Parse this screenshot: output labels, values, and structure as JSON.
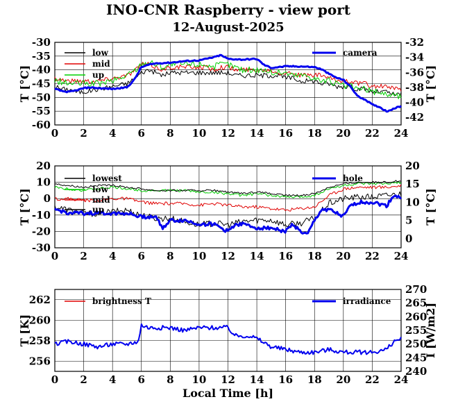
{
  "title": "INO-CNR Raspberry - view port",
  "subtitle": "12-August-2025",
  "chart_data": [
    {
      "type": "line",
      "x_ticks": [
        "0",
        "2",
        "4",
        "6",
        "8",
        "10",
        "12",
        "14",
        "16",
        "18",
        "20",
        "22",
        "24"
      ],
      "xlim": [
        0,
        24
      ],
      "ylabel": "T [°C]",
      "ylim": [
        -60,
        -30
      ],
      "y_ticks": [
        "-30",
        "-35",
        "-40",
        "-45",
        "-50",
        "-55",
        "-60"
      ],
      "y2label": "T [°C]",
      "y2lim": [
        -43,
        -32
      ],
      "y2_ticks": [
        "-32",
        "-34",
        "-36",
        "-38",
        "-40",
        "-42"
      ],
      "grid": true,
      "series": [
        {
          "name": "low",
          "color": "#000000",
          "axis": "left",
          "width": 1,
          "noise": 0.9,
          "x": [
            0,
            0.5,
            1,
            1.5,
            2,
            3,
            4,
            5,
            5.6,
            6,
            6.5,
            7,
            7.5,
            8,
            8.5,
            9,
            9.5,
            10,
            10.5,
            11,
            11.5,
            12,
            12.5,
            13,
            13.5,
            14,
            14.5,
            15,
            15.5,
            16,
            16.5,
            17,
            17.5,
            18,
            18.5,
            19,
            19.5,
            20,
            20.5,
            21,
            21.5,
            22,
            22.5,
            23,
            23.5,
            24
          ],
          "y": [
            -46,
            -47,
            -47,
            -48,
            -48,
            -47,
            -46,
            -45,
            -43,
            -41,
            -40,
            -41,
            -42,
            -41,
            -41,
            -41,
            -41,
            -41,
            -41,
            -41,
            -41,
            -41,
            -42,
            -42,
            -42,
            -42,
            -42,
            -42,
            -42,
            -43,
            -43,
            -44,
            -44,
            -44,
            -45,
            -45,
            -46,
            -46,
            -46,
            -47,
            -47,
            -48,
            -48,
            -48,
            -49,
            -49
          ]
        },
        {
          "name": "mid",
          "color": "#e00000",
          "axis": "left",
          "width": 1,
          "noise": 0.9,
          "x": [
            0,
            1,
            2,
            3,
            4,
            5,
            5.6,
            6,
            6.5,
            7,
            7.5,
            8,
            8.5,
            9,
            9.5,
            10,
            10.5,
            11,
            11.5,
            12,
            12.5,
            13,
            13.5,
            14,
            14.5,
            15,
            15.5,
            16,
            16.5,
            17,
            17.5,
            18,
            18.5,
            19,
            19.5,
            20,
            20.5,
            21,
            21.5,
            22,
            22.5,
            23,
            23.5,
            24
          ],
          "y": [
            -43,
            -44,
            -44,
            -44,
            -43,
            -42,
            -40,
            -38,
            -38,
            -39,
            -40,
            -39,
            -39,
            -39,
            -39,
            -39,
            -39,
            -40,
            -39,
            -39,
            -40,
            -40,
            -40,
            -40,
            -40,
            -40,
            -41,
            -41,
            -41,
            -42,
            -42,
            -42,
            -42,
            -43,
            -44,
            -44,
            -44,
            -45,
            -45,
            -46,
            -46,
            -46,
            -47,
            -47
          ]
        },
        {
          "name": "up",
          "color": "#00d000",
          "axis": "left",
          "width": 1,
          "noise": 1.2,
          "x": [
            0,
            1,
            2,
            3,
            4,
            5,
            5.6,
            6,
            6.5,
            7,
            7.5,
            8,
            8.5,
            9,
            9.5,
            10,
            10.5,
            11,
            11.5,
            12,
            12.5,
            13,
            13.5,
            14,
            14.5,
            15,
            15.5,
            16,
            16.5,
            17,
            17.5,
            18,
            18.5,
            19,
            19.5,
            20,
            20.5,
            21,
            21.5,
            22,
            22.5,
            23,
            23.5,
            24
          ],
          "y": [
            -44,
            -45,
            -45,
            -45,
            -44,
            -42,
            -40,
            -38,
            -37,
            -38,
            -39,
            -38,
            -38,
            -38,
            -38,
            -38,
            -38,
            -39,
            -38,
            -38,
            -39,
            -40,
            -40,
            -40,
            -40,
            -41,
            -41,
            -41,
            -42,
            -42,
            -42,
            -43,
            -44,
            -44,
            -45,
            -46,
            -46,
            -47,
            -47,
            -48,
            -48,
            -49,
            -49,
            -50
          ]
        },
        {
          "name": "camera",
          "color": "#0000ee",
          "axis": "right",
          "width": 3,
          "noise": 0.08,
          "x": [
            0,
            0.5,
            1,
            1.5,
            2,
            2.5,
            3,
            4,
            5,
            5.5,
            6,
            6.5,
            7,
            8,
            9,
            10,
            11,
            11.5,
            12,
            13,
            14,
            14.5,
            15,
            16,
            17,
            18,
            18.5,
            19,
            19.5,
            20,
            20.5,
            21,
            21.5,
            22,
            22.5,
            23,
            23.5,
            24
          ],
          "y": [
            -38.2,
            -38.5,
            -38.6,
            -38.4,
            -38.1,
            -38.0,
            -38.1,
            -38.2,
            -38.0,
            -37.0,
            -35.3,
            -35.0,
            -34.8,
            -34.7,
            -34.5,
            -34.4,
            -34.0,
            -33.7,
            -34.2,
            -34.3,
            -34.2,
            -35.0,
            -35.4,
            -35.2,
            -35.2,
            -35.3,
            -35.6,
            -36.2,
            -36.7,
            -37.0,
            -37.9,
            -39.2,
            -39.6,
            -40.3,
            -40.6,
            -41.2,
            -40.8,
            -40.5
          ]
        }
      ]
    },
    {
      "type": "line",
      "x_ticks": [
        "0",
        "2",
        "4",
        "6",
        "8",
        "10",
        "12",
        "14",
        "16",
        "18",
        "20",
        "22",
        "24"
      ],
      "xlim": [
        0,
        24
      ],
      "ylabel": "T [°C]",
      "ylim": [
        -30,
        20
      ],
      "y_ticks": [
        "20",
        "10",
        "0",
        "-10",
        "-20",
        "-30"
      ],
      "y2label": "T [°C]",
      "y2lim": [
        -2.5,
        20
      ],
      "y2_ticks": [
        "20",
        "15",
        "10",
        "5",
        "0"
      ],
      "grid": true,
      "series": [
        {
          "name": "lowest",
          "color": "#000000",
          "axis": "left",
          "width": 1,
          "noise": 2.0,
          "x": [
            0,
            1,
            2,
            3,
            4,
            5,
            6,
            7,
            8,
            9,
            10,
            11,
            12,
            13,
            14,
            15,
            16,
            17,
            18,
            19,
            20,
            21,
            22,
            23,
            24
          ],
          "y": [
            -5,
            -7,
            -9,
            -9,
            -8,
            -7,
            -10,
            -12,
            -12,
            -14,
            -16,
            -15,
            -16,
            -14,
            -13,
            -13,
            -16,
            -15,
            -12,
            -3,
            0,
            1,
            1,
            2,
            3
          ]
        },
        {
          "name": "low",
          "color": "#00cc00",
          "axis": "left",
          "width": 1,
          "noise": 0.8,
          "x": [
            0,
            1,
            2,
            3,
            4,
            5,
            6,
            7,
            8,
            9,
            10,
            11,
            12,
            13,
            14,
            15,
            16,
            17,
            18,
            19,
            20,
            21,
            22,
            23,
            24
          ],
          "y": [
            7,
            6,
            5,
            6,
            7,
            6,
            5,
            5,
            5,
            5,
            4,
            4,
            3,
            2,
            3,
            2,
            1,
            1,
            2,
            6,
            8,
            9,
            9,
            9,
            10
          ]
        },
        {
          "name": "mid",
          "color": "#e00000",
          "axis": "left",
          "width": 1,
          "noise": 1.0,
          "x": [
            0,
            1,
            2,
            3,
            4,
            5,
            6,
            7,
            8,
            9,
            10,
            11,
            12,
            13,
            14,
            15,
            16,
            17,
            18,
            19,
            20,
            21,
            22,
            23,
            24
          ],
          "y": [
            0,
            0,
            -1,
            -1,
            0,
            0,
            -2,
            -3,
            -3,
            -3,
            -4,
            -3,
            -4,
            -5,
            -5,
            -6,
            -7,
            -6,
            -5,
            2,
            6,
            7,
            7,
            7,
            8
          ]
        },
        {
          "name": "up",
          "color": "#000000",
          "axis": "left",
          "width": 1,
          "noise": 0.6,
          "x": [
            0,
            1,
            2,
            3,
            4,
            5,
            6,
            7,
            8,
            9,
            10,
            11,
            12,
            13,
            14,
            15,
            16,
            17,
            18,
            19,
            20,
            21,
            22,
            23,
            24
          ],
          "y": [
            9,
            8,
            7,
            8,
            8,
            7,
            6,
            5,
            5,
            5,
            5,
            5,
            4,
            3,
            4,
            3,
            2,
            2,
            3,
            7,
            9,
            10,
            10,
            10,
            11
          ]
        },
        {
          "name": "hole",
          "color": "#0000ee",
          "axis": "right",
          "width": 3,
          "noise": 0.5,
          "x": [
            0,
            1,
            2,
            3,
            4,
            5,
            6,
            7,
            7.5,
            8,
            9,
            10,
            11,
            12,
            12.5,
            13,
            14,
            15,
            16,
            16.5,
            17,
            17.5,
            18,
            18.5,
            19,
            19.5,
            20,
            20.5,
            21,
            22,
            23,
            23.5,
            24
          ],
          "y": [
            8,
            7,
            7,
            7,
            7,
            7,
            6,
            6,
            3,
            5,
            5,
            4,
            4,
            2,
            4,
            4,
            3,
            3,
            2,
            4,
            2,
            1,
            5,
            8,
            8,
            7,
            6,
            9,
            10,
            10,
            9,
            12,
            11
          ]
        }
      ]
    },
    {
      "type": "line",
      "x_ticks": [
        "0",
        "2",
        "4",
        "6",
        "8",
        "10",
        "12",
        "14",
        "16",
        "18",
        "20",
        "22",
        "24"
      ],
      "xlim": [
        0,
        24
      ],
      "xlabel": "Local Time [h]",
      "ylabel": "T [K]",
      "ylim": [
        255,
        263
      ],
      "y_ticks": [
        "262",
        "260",
        "258",
        "256"
      ],
      "y2label": "I [W/m2]",
      "y2lim": [
        240,
        270
      ],
      "y2_ticks": [
        "270",
        "265",
        "260",
        "255",
        "250",
        "245",
        "240"
      ],
      "grid": true,
      "series": [
        {
          "name": "brightness T",
          "color": "#e00000",
          "axis": "left",
          "width": 1,
          "noise": 0,
          "x": [],
          "y": []
        },
        {
          "name": "irradiance",
          "color": "#0000ee",
          "axis": "right",
          "width": 2,
          "noise": 0.8,
          "x": [
            0,
            1,
            2,
            3,
            4,
            5,
            5.8,
            6,
            6.5,
            7,
            8,
            9,
            10,
            11,
            12,
            12.5,
            13,
            13.5,
            14,
            15,
            16,
            17,
            18,
            19,
            20,
            21,
            22,
            23,
            23.5,
            24
          ],
          "y": [
            250,
            251,
            250,
            249,
            250,
            250,
            251,
            257,
            256,
            256,
            256,
            255,
            256,
            256,
            256,
            253,
            253,
            253,
            252,
            249,
            248,
            247,
            247,
            248,
            247,
            247,
            247,
            248,
            251,
            252
          ]
        }
      ]
    }
  ]
}
